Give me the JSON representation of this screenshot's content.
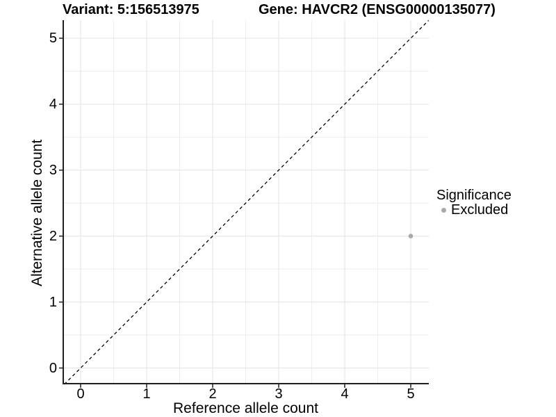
{
  "chart_data": {
    "type": "scatter",
    "titles": {
      "variant": "Variant: 5:156513975",
      "gene": "Gene: HAVCR2 (ENSG00000135077)"
    },
    "xlabel": "Reference allele count",
    "ylabel": "Alternative allele count",
    "xticks": [
      0,
      1,
      2,
      3,
      4,
      5
    ],
    "yticks": [
      0,
      1,
      2,
      3,
      4,
      5
    ],
    "xlim": [
      -0.27,
      5.27
    ],
    "ylim": [
      -0.25,
      5.27
    ],
    "grid": {
      "major": true,
      "minor": true
    },
    "abline": {
      "slope": 1,
      "intercept": 0,
      "style": "dashed",
      "color": "#000000"
    },
    "points": [
      {
        "x": 5,
        "y": 2,
        "significance": "Excluded",
        "color": "#a9a9a9"
      }
    ],
    "legend": {
      "title": "Significance",
      "position": "right",
      "items": [
        {
          "label": "Excluded",
          "color": "#a9a9a9"
        }
      ]
    },
    "colors": {
      "background": "#ffffff",
      "grid_major": "#e3e3e3",
      "grid_minor": "#eeeeee",
      "axis_line": "#1f1f1f",
      "text": "#000000"
    }
  }
}
